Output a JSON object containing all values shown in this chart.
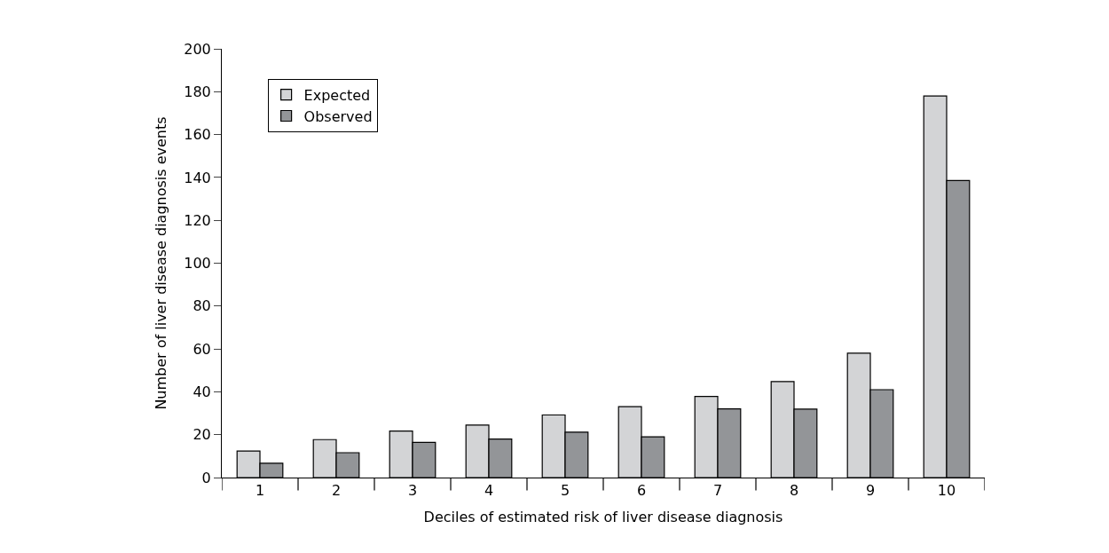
{
  "chart_data": {
    "type": "bar",
    "xlabel": "Deciles of estimated risk of liver disease diagnosis",
    "ylabel": "Number of liver disease diagnosis events",
    "categories": [
      "1",
      "2",
      "3",
      "4",
      "5",
      "6",
      "7",
      "8",
      "9",
      "10"
    ],
    "series": [
      {
        "name": "Expected",
        "color": "#d3d4d6",
        "values": [
          12.4,
          17.7,
          21.7,
          24.5,
          29.2,
          33.1,
          37.8,
          44.8,
          58,
          178
        ]
      },
      {
        "name": "Observed",
        "color": "#939598",
        "values": [
          6.7,
          11.6,
          16.4,
          18,
          21.2,
          19,
          32,
          31.9,
          41,
          138.6
        ]
      }
    ],
    "ylim": [
      0,
      200
    ],
    "yticks": [
      0,
      20,
      40,
      60,
      80,
      100,
      120,
      140,
      160,
      180,
      200
    ],
    "legend": "top left"
  }
}
